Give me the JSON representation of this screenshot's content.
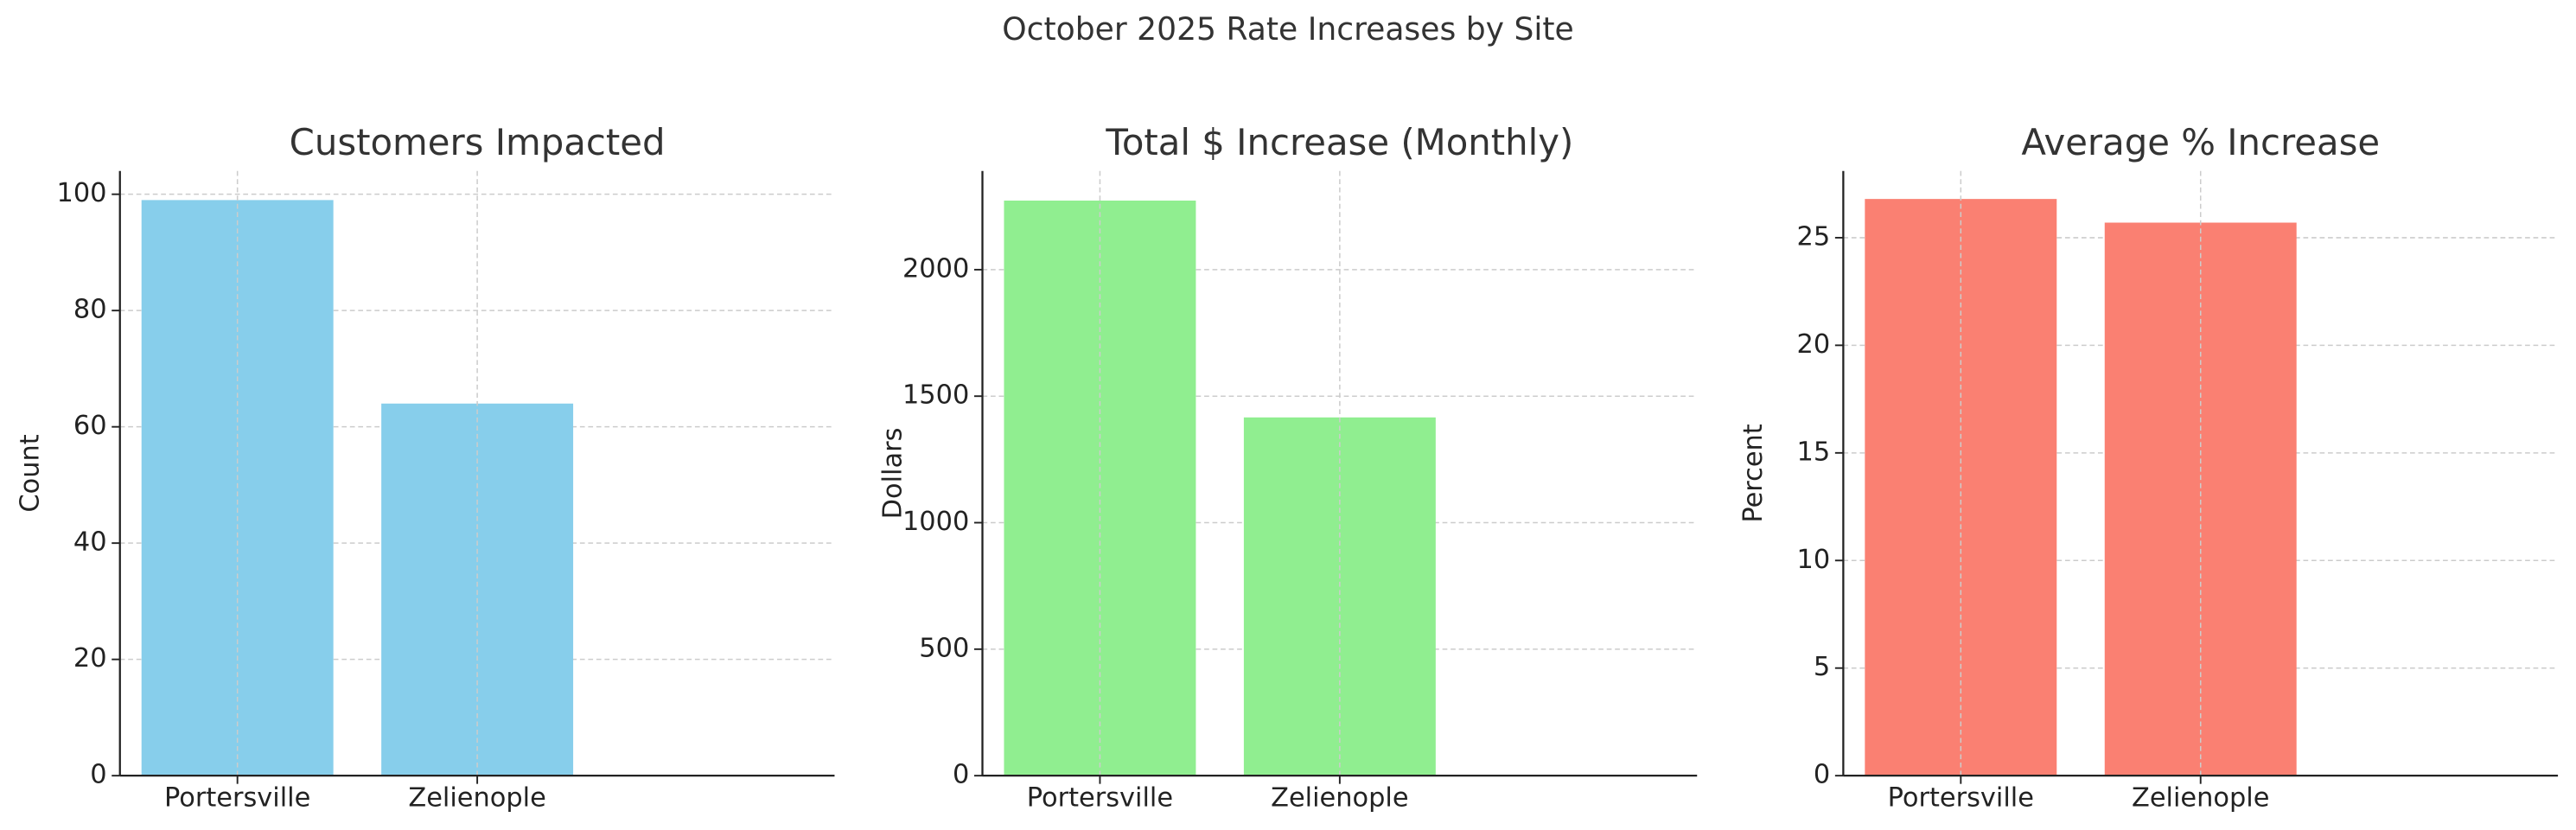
{
  "title": "October 2025 Rate Increases by Site",
  "chart_data": [
    {
      "type": "bar",
      "title": "Customers Impacted",
      "ylabel": "Count",
      "categories": [
        "Portersville",
        "Zelienople"
      ],
      "values": [
        99,
        64
      ],
      "color": "#87ceeb",
      "ylim": [
        0,
        104
      ],
      "yticks": [
        0,
        20,
        40,
        60,
        80,
        100
      ],
      "grid": true
    },
    {
      "type": "bar",
      "title": "Total $ Increase (Monthly)",
      "ylabel": "Dollars",
      "categories": [
        "Portersville",
        "Zelienople"
      ],
      "values": [
        2273,
        1416
      ],
      "color": "#90ee90",
      "ylim": [
        0,
        2390
      ],
      "yticks": [
        0,
        500,
        1000,
        1500,
        2000
      ],
      "grid": true
    },
    {
      "type": "bar",
      "title": "Average % Increase",
      "ylabel": "Percent",
      "categories": [
        "Portersville",
        "Zelienople"
      ],
      "values": [
        26.8,
        25.7
      ],
      "color": "#fa8072",
      "ylim": [
        0,
        28.1
      ],
      "yticks": [
        0,
        5,
        10,
        15,
        20,
        25
      ],
      "grid": true
    }
  ]
}
